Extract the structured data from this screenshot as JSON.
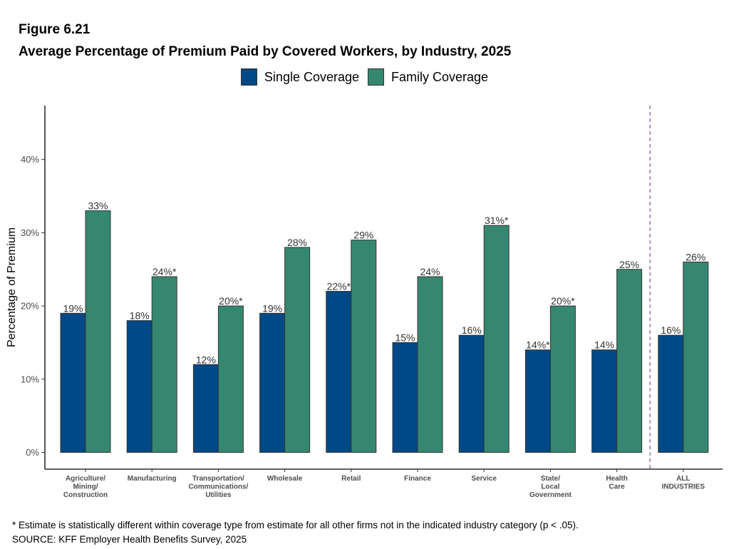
{
  "figure_label": "Figure 6.21",
  "title": "Average Percentage of Premium Paid by Covered Workers, by Industry, 2025",
  "footnote": "* Estimate is statistically different within coverage type from estimate for all other firms not in the indicated industry category (p < .05).",
  "source": "SOURCE: KFF Employer Health Benefits Survey, 2025",
  "colors": {
    "single": "#004987",
    "family": "#35886F",
    "divider": "#9B59B6"
  },
  "legend": [
    {
      "name": "Single Coverage",
      "color": "#004987"
    },
    {
      "name": "Family Coverage",
      "color": "#35886F"
    }
  ],
  "chart_data": {
    "type": "bar",
    "ylabel": "Percentage of Premium",
    "xlabel": "",
    "ylim": [
      0,
      47
    ],
    "yticks": [
      "0%",
      "10%",
      "20%",
      "30%",
      "40%"
    ],
    "ytick_values": [
      0,
      10,
      20,
      30,
      40
    ],
    "grid": false,
    "legend_position": "top",
    "categories": [
      [
        "Agriculture/",
        "Mining/",
        "Construction"
      ],
      [
        "Manufacturing"
      ],
      [
        "Transportation/",
        "Communications/",
        "Utilities"
      ],
      [
        "Wholesale"
      ],
      [
        "Retail"
      ],
      [
        "Finance"
      ],
      [
        "Service"
      ],
      [
        "State/",
        "Local",
        "Government"
      ],
      [
        "Health",
        "Care"
      ],
      [
        "ALL",
        "INDUSTRIES"
      ]
    ],
    "series": [
      {
        "name": "Single Coverage",
        "values": [
          19,
          18,
          12,
          19,
          22,
          15,
          16,
          14,
          14,
          16
        ],
        "labels": [
          "19%",
          "18%",
          "12%",
          "19%",
          "22%*",
          "15%",
          "16%",
          "14%*",
          "14%",
          "16%"
        ]
      },
      {
        "name": "Family Coverage",
        "values": [
          33,
          24,
          20,
          28,
          29,
          24,
          31,
          20,
          25,
          26
        ],
        "labels": [
          "33%",
          "24%*",
          "20%*",
          "28%",
          "29%",
          "24%",
          "31%*",
          "20%*",
          "25%",
          "26%"
        ]
      }
    ],
    "divider_before_category": 9
  }
}
